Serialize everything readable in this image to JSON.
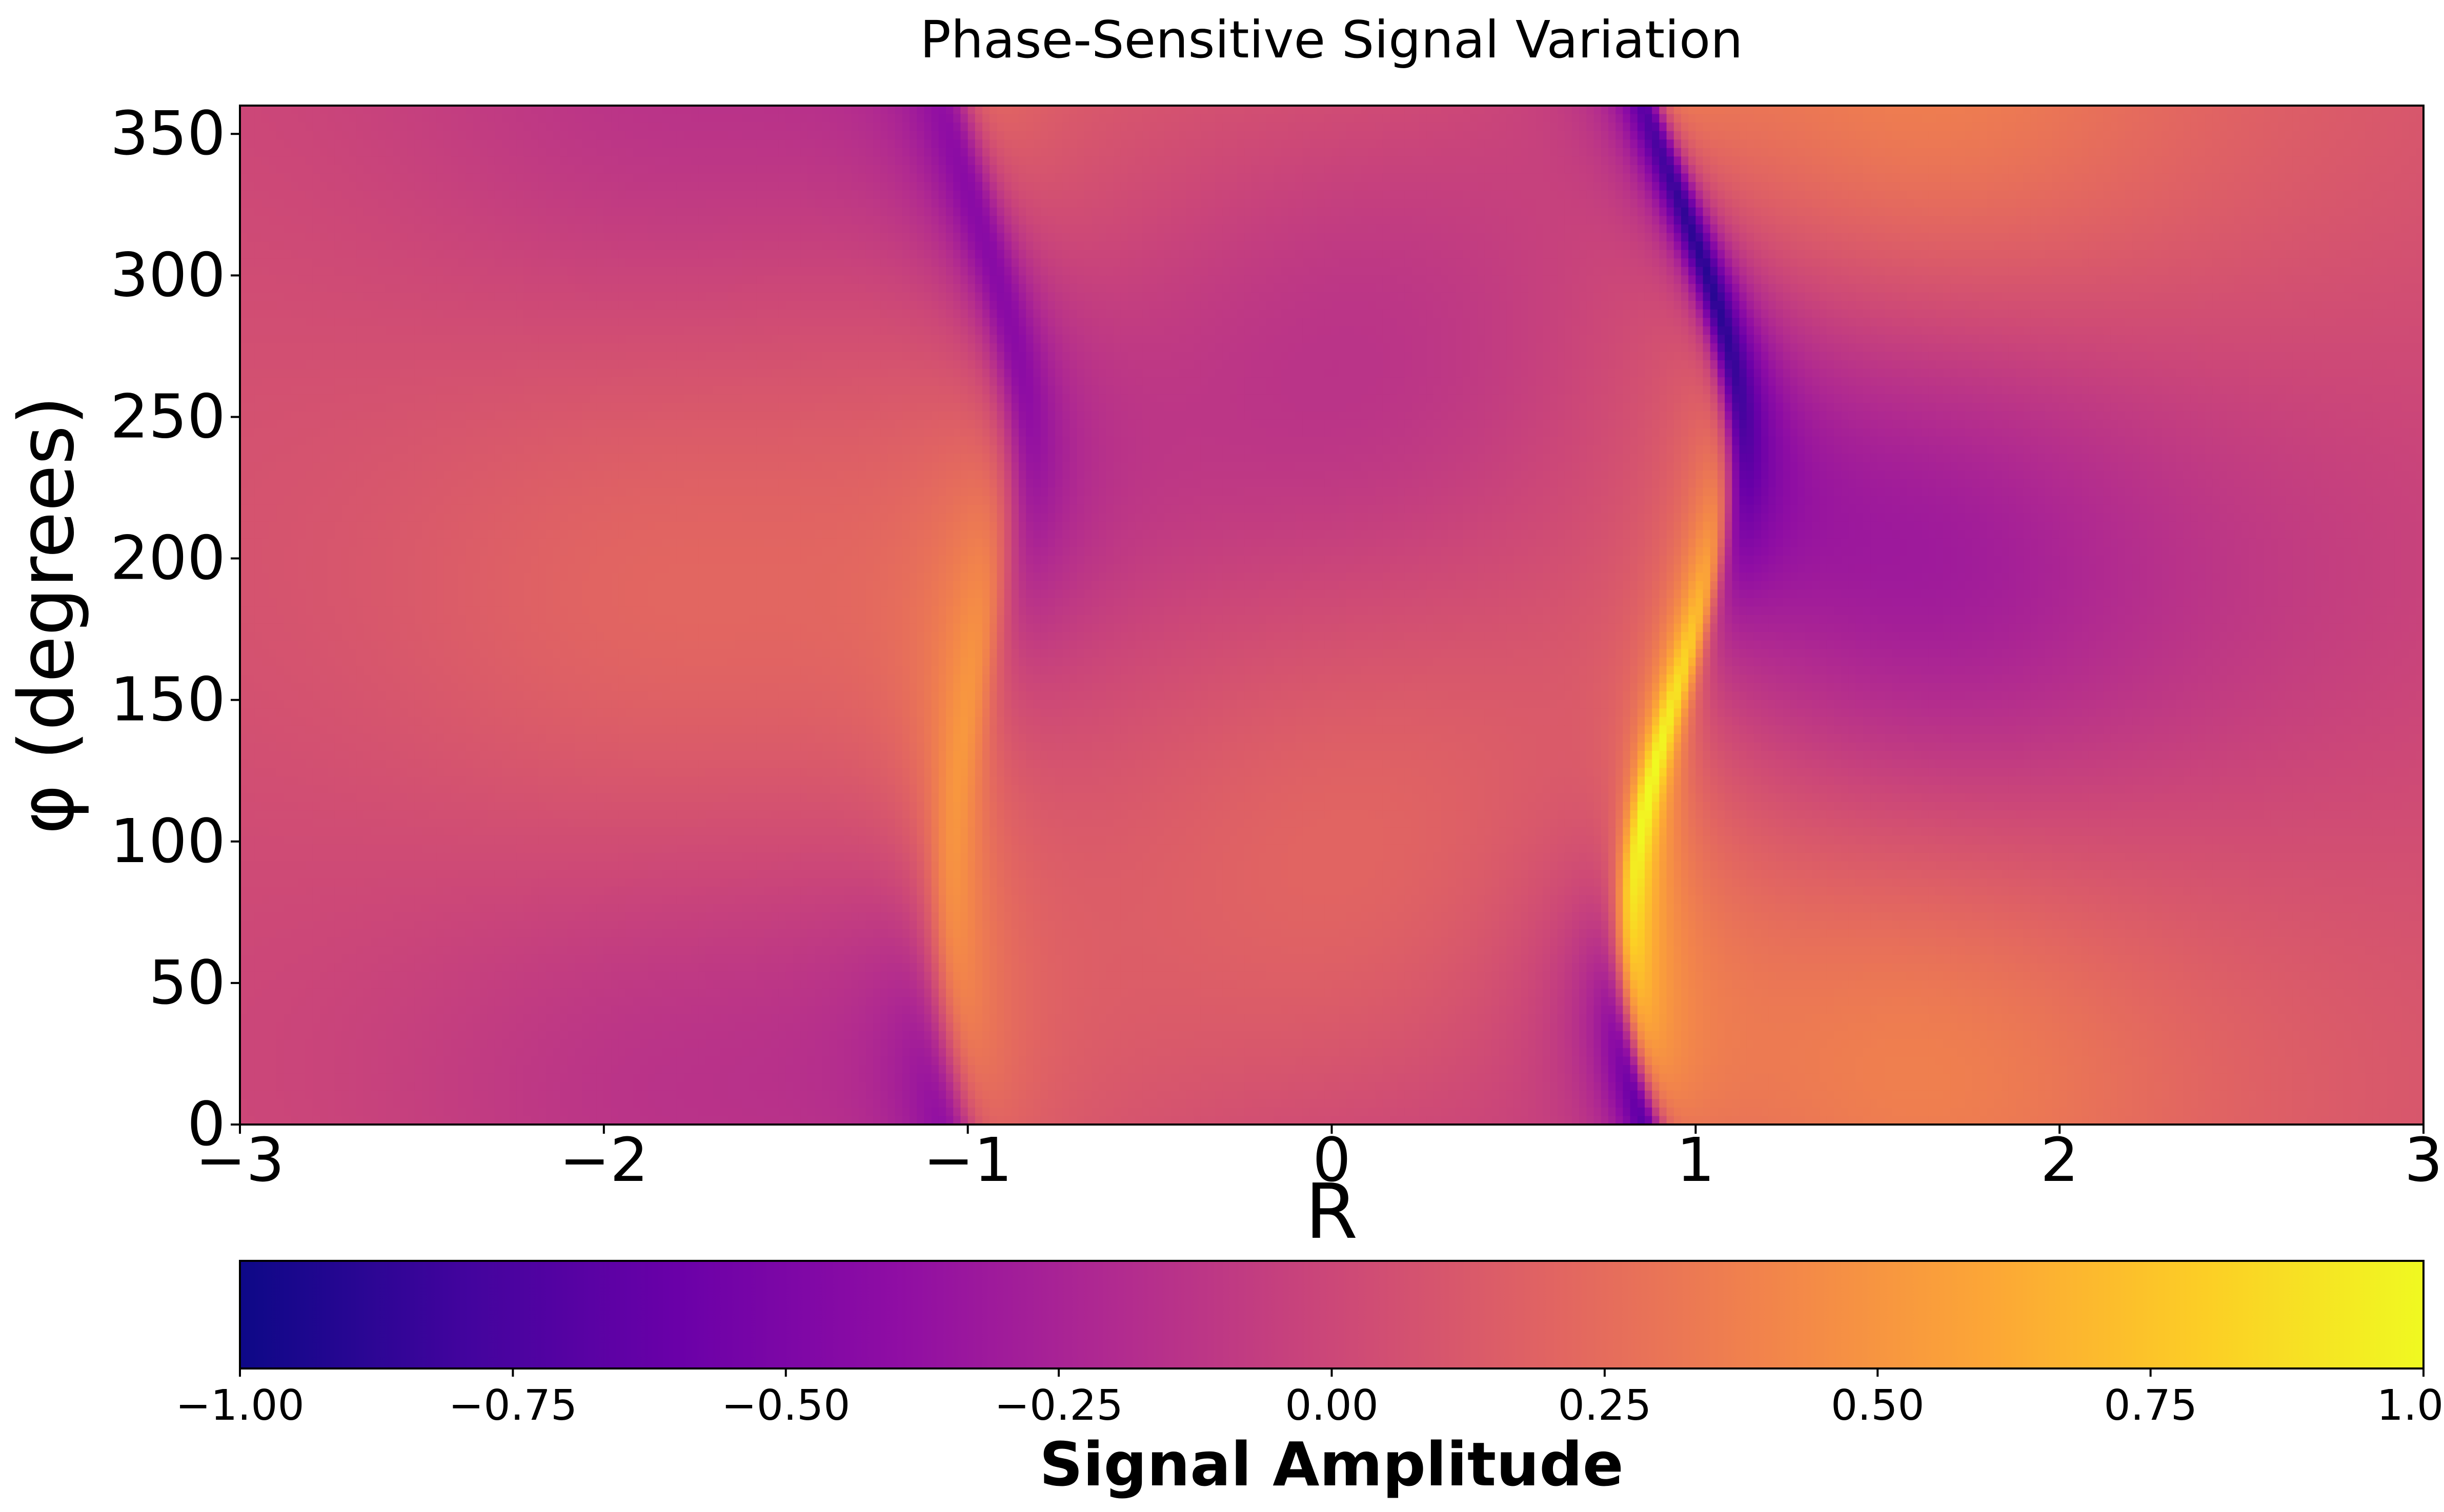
{
  "chart_data": {
    "type": "heatmap",
    "title": "Phase-Sensitive Signal Variation",
    "xlabel": "R",
    "ylabel": "φ (degrees)",
    "xlim": [
      -3,
      3
    ],
    "ylim": [
      0,
      360
    ],
    "x_ticks": [
      -3,
      -2,
      -1,
      0,
      1,
      2,
      3
    ],
    "x_tick_labels": [
      "−3",
      "−2",
      "−1",
      "0",
      "1",
      "2",
      "3"
    ],
    "y_ticks": [
      0,
      50,
      100,
      150,
      200,
      250,
      300,
      350
    ],
    "y_tick_labels": [
      "0",
      "50",
      "100",
      "150",
      "200",
      "250",
      "300",
      "350"
    ],
    "colormap": "plasma",
    "colormap_stops": [
      "#0d0887",
      "#41049d",
      "#6a00a8",
      "#8f0da4",
      "#b12a90",
      "#cc4778",
      "#e16462",
      "#f2844b",
      "#fca636",
      "#fcce25",
      "#f0f921"
    ],
    "colorbar": {
      "label": "Signal Amplitude",
      "orientation": "horizontal",
      "range": [
        -1.0,
        1.0
      ],
      "ticks": [
        -1.0,
        -0.75,
        -0.5,
        -0.25,
        0.0,
        0.25,
        0.5,
        0.75,
        1.0
      ],
      "tick_labels": [
        "−1.00",
        "−0.75",
        "−0.50",
        "−0.25",
        "0.00",
        "0.25",
        "0.50",
        "0.75",
        "1.00"
      ]
    },
    "features": [
      {
        "description": "minimum",
        "x": 0.93,
        "y": 240,
        "value": -1.0
      },
      {
        "description": "maximum",
        "x": 0.95,
        "y": 50,
        "value": 1.0
      },
      {
        "description": "local maximum",
        "x": -1.0,
        "y": 130,
        "value": 0.62
      },
      {
        "description": "local minimum",
        "x": -0.97,
        "y": 300,
        "value": -0.6
      },
      {
        "description": "local minimum",
        "x": -1.0,
        "y": 10,
        "value": -0.48
      }
    ]
  }
}
